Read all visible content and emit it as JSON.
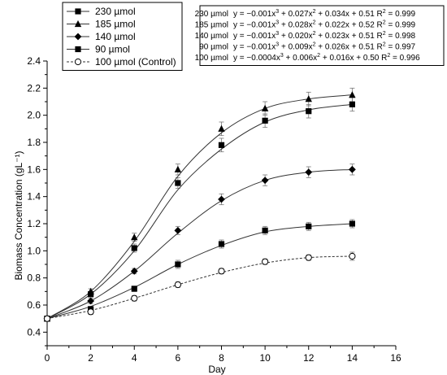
{
  "chart_data": {
    "type": "line",
    "xlabel": "Day",
    "ylabel": "Biomass Concentration (gL⁻¹)",
    "xlim": [
      0,
      16
    ],
    "ylim": [
      0.3,
      2.4
    ],
    "x_ticks": [
      0,
      2,
      4,
      6,
      8,
      10,
      12,
      14,
      16
    ],
    "y_ticks": [
      0.4,
      0.6,
      0.8,
      1.0,
      1.2,
      1.4,
      1.6,
      1.8,
      2.0,
      2.2,
      2.4
    ],
    "x_tick_labels": [
      "0",
      "2",
      "4",
      "6",
      "8",
      "10",
      "12",
      "14",
      "16"
    ],
    "y_tick_labels": [
      "0.4",
      "0.6",
      "0.8",
      "1.0",
      "1.2",
      "1.4",
      "1.6",
      "1.8",
      "2.0",
      "2.2",
      "2.4"
    ],
    "grid": false,
    "legend_position": "top-left",
    "series": [
      {
        "name": "230 µmol",
        "marker": "square",
        "line": "solid",
        "x": [
          0,
          2,
          4,
          6,
          8,
          10,
          12,
          14
        ],
        "y": [
          0.5,
          0.68,
          1.02,
          1.5,
          1.78,
          1.96,
          2.03,
          2.08
        ],
        "err": [
          0.01,
          0.02,
          0.03,
          0.04,
          0.05,
          0.05,
          0.05,
          0.05
        ],
        "curve": [
          0.5,
          0.68,
          1.0,
          1.45,
          1.75,
          1.95,
          2.04,
          2.08
        ]
      },
      {
        "name": "185 µmol",
        "marker": "triangle",
        "line": "solid",
        "x": [
          0,
          2,
          4,
          6,
          8,
          10,
          12,
          14
        ],
        "y": [
          0.5,
          0.7,
          1.1,
          1.6,
          1.9,
          2.05,
          2.12,
          2.15
        ],
        "err": [
          0.01,
          0.02,
          0.03,
          0.04,
          0.05,
          0.05,
          0.05,
          0.05
        ],
        "curve": [
          0.5,
          0.7,
          1.07,
          1.55,
          1.87,
          2.05,
          2.12,
          2.15
        ]
      },
      {
        "name": "140 µmol",
        "marker": "diamond",
        "line": "solid",
        "x": [
          0,
          2,
          4,
          6,
          8,
          10,
          12,
          14
        ],
        "y": [
          0.5,
          0.63,
          0.85,
          1.15,
          1.38,
          1.52,
          1.58,
          1.6
        ],
        "err": [
          0.01,
          0.02,
          0.02,
          0.03,
          0.04,
          0.04,
          0.04,
          0.04
        ],
        "curve": [
          0.5,
          0.63,
          0.85,
          1.13,
          1.37,
          1.52,
          1.58,
          1.6
        ]
      },
      {
        "name": "90 µmol",
        "marker": "square",
        "line": "solid",
        "x": [
          0,
          2,
          4,
          6,
          8,
          10,
          12,
          14
        ],
        "y": [
          0.5,
          0.57,
          0.72,
          0.9,
          1.05,
          1.15,
          1.18,
          1.2
        ],
        "err": [
          0.01,
          0.02,
          0.02,
          0.03,
          0.03,
          0.03,
          0.03,
          0.03
        ],
        "curve": [
          0.5,
          0.59,
          0.73,
          0.9,
          1.04,
          1.14,
          1.18,
          1.2
        ]
      },
      {
        "name": "100 µmol (Control)",
        "marker": "circle-open",
        "line": "dashed",
        "x": [
          0,
          2,
          4,
          6,
          8,
          10,
          12,
          14
        ],
        "y": [
          0.5,
          0.55,
          0.65,
          0.75,
          0.85,
          0.92,
          0.95,
          0.96
        ],
        "err": [
          0.01,
          0.02,
          0.02,
          0.02,
          0.02,
          0.02,
          0.02,
          0.03
        ],
        "curve": [
          0.5,
          0.56,
          0.65,
          0.75,
          0.84,
          0.91,
          0.95,
          0.96
        ]
      }
    ],
    "equations": [
      {
        "label": "230 µmol",
        "c3": "y = −0.001x",
        "c2": " + 0.027x",
        "c1": " + 0.034x + 0.51",
        "r2": "R",
        "r2v": " = 0.999"
      },
      {
        "label": "185 µmol",
        "c3": "y = −0.001x",
        "c2": " + 0.028x",
        "c1": " + 0.022x + 0.52",
        "r2": "R",
        "r2v": " = 0.999"
      },
      {
        "label": "140 µmol",
        "c3": "y = −0.001x",
        "c2": " + 0.020x",
        "c1": " + 0.023x + 0.51",
        "r2": "R",
        "r2v": " = 0.998"
      },
      {
        "label": "90 µmol",
        "c3": "y = −0.001x",
        "c2": " + 0.009x",
        "c1": " + 0.026x + 0.51",
        "r2": "R",
        "r2v": " = 0.997"
      },
      {
        "label": "100 µmol",
        "c3": "y = −0.0004x",
        "c2": " + 0.006x",
        "c1": " + 0.016x + 0.50",
        "r2": "R",
        "r2v": " = 0.996"
      }
    ]
  }
}
